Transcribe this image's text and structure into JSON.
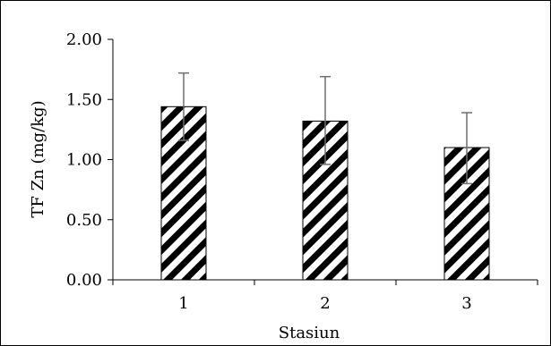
{
  "chart_data": {
    "type": "bar",
    "title": "",
    "xlabel": "Stasiun",
    "ylabel": "TF Zn (mg/kg)",
    "categories": [
      "1",
      "2",
      "3"
    ],
    "values": [
      1.44,
      1.32,
      1.1
    ],
    "error_bars": [
      {
        "low": 1.16,
        "high": 1.72
      },
      {
        "low": 0.96,
        "high": 1.69
      },
      {
        "low": 0.8,
        "high": 1.39
      }
    ],
    "ylim": [
      0,
      2.0
    ],
    "yticks": [
      "0.00",
      "0.50",
      "1.00",
      "1.50",
      "2.00"
    ],
    "ytick_values": [
      0,
      0.5,
      1.0,
      1.5,
      2.0
    ],
    "grid": false,
    "legend": "none",
    "bar_pattern": "diagonal-stripes",
    "colors": {
      "bar_stripe": "#000000",
      "bar_fill": "#ffffff",
      "error_bar": "#6e6e6e",
      "axis": "#000000"
    }
  }
}
